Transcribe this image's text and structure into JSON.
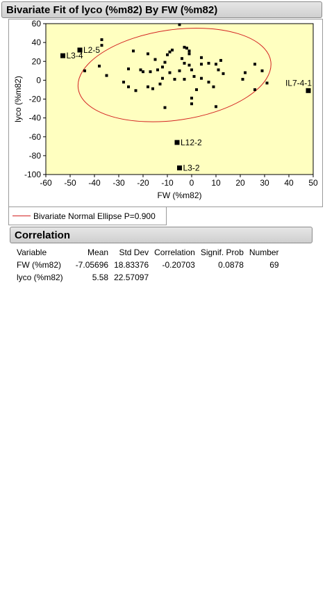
{
  "report": {
    "title": "Bivariate Fit of lyco (%m82) By FW (%m82)",
    "legend_label": "Bivariate Normal Ellipse P=0.900",
    "ellipse_color": "#d32020",
    "plot_background": "#ffffc0"
  },
  "chart_data": {
    "type": "scatter",
    "title": "Bivariate Fit of lyco (%m82) By FW (%m82)",
    "xlabel": "FW (%m82)",
    "ylabel": "lyco (%m82)",
    "xlim": [
      -60,
      50
    ],
    "ylim": [
      -100,
      60
    ],
    "xticks": [
      -60,
      -50,
      -40,
      -30,
      -20,
      -10,
      0,
      10,
      20,
      30,
      40,
      50
    ],
    "yticks": [
      -100,
      -80,
      -60,
      -40,
      -20,
      0,
      20,
      40,
      60
    ],
    "grid": false,
    "ellipse": {
      "label": "Bivariate Normal Ellipse P=0.900",
      "cx": -7.06,
      "cy": 5.58,
      "rx": 40,
      "ry": 48,
      "tilt_deg": -8
    },
    "points": [
      {
        "x": -5,
        "y": 59
      },
      {
        "x": -37,
        "y": 43
      },
      {
        "x": -37,
        "y": 37
      },
      {
        "x": -38,
        "y": 15
      },
      {
        "x": -44,
        "y": 10
      },
      {
        "x": -35,
        "y": 5
      },
      {
        "x": -24,
        "y": 31
      },
      {
        "x": -18,
        "y": 28
      },
      {
        "x": -15,
        "y": 22
      },
      {
        "x": -9,
        "y": 30
      },
      {
        "x": -8,
        "y": 32
      },
      {
        "x": -10,
        "y": 27
      },
      {
        "x": -3,
        "y": 35
      },
      {
        "x": -2,
        "y": 34
      },
      {
        "x": -1,
        "y": 31
      },
      {
        "x": -1,
        "y": 28
      },
      {
        "x": -4,
        "y": 23
      },
      {
        "x": 4,
        "y": 24
      },
      {
        "x": 12,
        "y": 21
      },
      {
        "x": -3,
        "y": 18
      },
      {
        "x": -1,
        "y": 16
      },
      {
        "x": 4,
        "y": 17
      },
      {
        "x": 7,
        "y": 18
      },
      {
        "x": 10,
        "y": 17
      },
      {
        "x": -12,
        "y": 14
      },
      {
        "x": -11,
        "y": 19
      },
      {
        "x": -21,
        "y": 11
      },
      {
        "x": -20,
        "y": 9
      },
      {
        "x": -17,
        "y": 9
      },
      {
        "x": -14,
        "y": 11
      },
      {
        "x": -9,
        "y": 8
      },
      {
        "x": -5,
        "y": 10
      },
      {
        "x": 0,
        "y": 11
      },
      {
        "x": 11,
        "y": 11
      },
      {
        "x": 13,
        "y": 7
      },
      {
        "x": 22,
        "y": 8
      },
      {
        "x": 26,
        "y": 17
      },
      {
        "x": 29,
        "y": 10
      },
      {
        "x": -26,
        "y": 12
      },
      {
        "x": -28,
        "y": -2
      },
      {
        "x": -26,
        "y": -7
      },
      {
        "x": -23,
        "y": -11
      },
      {
        "x": -18,
        "y": -7
      },
      {
        "x": -16,
        "y": -9
      },
      {
        "x": -13,
        "y": -4
      },
      {
        "x": -12,
        "y": 2
      },
      {
        "x": -7,
        "y": 1
      },
      {
        "x": -3,
        "y": 1
      },
      {
        "x": 1,
        "y": 4
      },
      {
        "x": 4,
        "y": 2
      },
      {
        "x": 21,
        "y": 1
      },
      {
        "x": 31,
        "y": -3
      },
      {
        "x": 26,
        "y": -10
      },
      {
        "x": 2,
        "y": -10
      },
      {
        "x": 7,
        "y": -2
      },
      {
        "x": 9,
        "y": -7
      },
      {
        "x": -11,
        "y": -29
      },
      {
        "x": 0,
        "y": -25
      },
      {
        "x": 0,
        "y": -19
      },
      {
        "x": 10,
        "y": -28
      }
    ],
    "labeled_points": [
      {
        "label": "L3-4",
        "x": -53,
        "y": 26
      },
      {
        "label": "L2-5",
        "x": -46,
        "y": 32
      },
      {
        "label": "IL7-4-1",
        "x": 48,
        "y": -11
      },
      {
        "label": "L12-2",
        "x": -6,
        "y": -66
      },
      {
        "label": "L3-2",
        "x": -5,
        "y": -93
      }
    ]
  },
  "correlation": {
    "title": "Correlation",
    "headers": [
      "Variable",
      "Mean",
      "Std Dev",
      "Correlation",
      "Signif. Prob",
      "Number"
    ],
    "rows": [
      {
        "variable": "FW (%m82)",
        "mean": "-7.05696",
        "std_dev": "18.83376",
        "correlation": "-0.20703",
        "signif_prob": "0.0878",
        "number": "69"
      },
      {
        "variable": "lyco (%m82)",
        "mean": "5.58",
        "std_dev": "22.57097",
        "correlation": "",
        "signif_prob": "",
        "number": ""
      }
    ]
  }
}
